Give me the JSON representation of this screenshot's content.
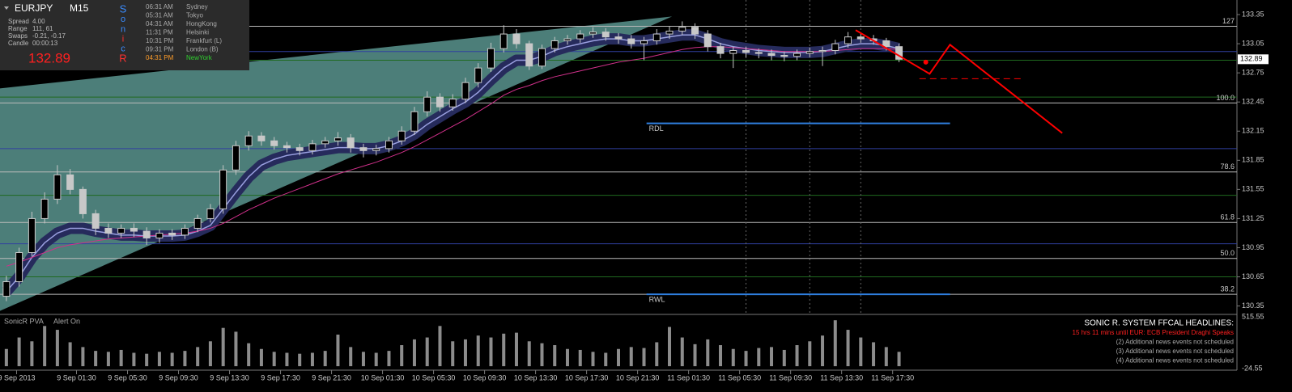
{
  "chart_data": {
    "type": "candlestick",
    "symbol": "EURJPY",
    "timeframe": "M15",
    "xlim": [
      -4.5,
      92.5
    ],
    "xticks": [
      {
        "value": -3.2,
        "label": "9 Sep 2013"
      },
      {
        "value": 1.5,
        "label": "9 Sep 01:30"
      },
      {
        "value": 5.5,
        "label": "9 Sep 05:30"
      },
      {
        "value": 9.5,
        "label": "9 Sep 09:30"
      },
      {
        "value": 13.5,
        "label": "9 Sep 13:30"
      },
      {
        "value": 17.5,
        "label": "9 Sep 17:30"
      },
      {
        "value": 21.5,
        "label": "9 Sep 21:30"
      },
      {
        "value": 25.5,
        "label": "10 Sep 01:30"
      },
      {
        "value": 29.5,
        "label": "10 Sep 05:30"
      },
      {
        "value": 33.5,
        "label": "10 Sep 09:30"
      },
      {
        "value": 37.5,
        "label": "10 Sep 13:30"
      },
      {
        "value": 41.5,
        "label": "10 Sep 17:30"
      },
      {
        "value": 45.5,
        "label": "10 Sep 21:30"
      },
      {
        "value": 49.5,
        "label": "11 Sep 01:30"
      },
      {
        "value": 53.5,
        "label": "11 Sep 05:30"
      },
      {
        "value": 57.5,
        "label": "11 Sep 09:30"
      },
      {
        "value": 61.5,
        "label": "11 Sep 13:30"
      },
      {
        "value": 65.5,
        "label": "11 Sep 17:30"
      }
    ],
    "ylim": [
      130.28,
      133.5
    ],
    "yticks": [
      133.35,
      133.05,
      132.75,
      132.45,
      132.15,
      131.85,
      131.55,
      131.25,
      130.95,
      130.65,
      130.35
    ],
    "last_price": 132.89,
    "candle_color": "#c8c8c8",
    "x": [
      -4,
      -3,
      -2,
      -1,
      0,
      1,
      2,
      3,
      4,
      5,
      6,
      7,
      8,
      9,
      10,
      11,
      12,
      13,
      14,
      15,
      16,
      17,
      18,
      19,
      20,
      21,
      22,
      23,
      24,
      25,
      26,
      27,
      28,
      29,
      30,
      31,
      32,
      33,
      34,
      35,
      36,
      37,
      38,
      39,
      40,
      41,
      42,
      43,
      44,
      45,
      46,
      47,
      48,
      49,
      50,
      51,
      52,
      53,
      54,
      55,
      56,
      57,
      58,
      59,
      60,
      61,
      62,
      63,
      64,
      65,
      66
    ],
    "open": [
      130.45,
      130.6,
      130.9,
      131.25,
      131.45,
      131.7,
      131.55,
      131.3,
      131.15,
      131.1,
      131.15,
      131.12,
      131.05,
      131.1,
      131.08,
      131.15,
      131.25,
      131.35,
      131.75,
      132,
      132.1,
      132.05,
      132,
      131.98,
      131.95,
      132.02,
      132.05,
      132.08,
      131.98,
      131.95,
      131.97,
      132.05,
      132.15,
      132.35,
      132.5,
      132.4,
      132.48,
      132.65,
      132.8,
      133,
      133.15,
      133.05,
      132.82,
      133,
      133.08,
      133.1,
      133.15,
      133.17,
      133.12,
      133.1,
      133.05,
      133.08,
      133.15,
      133.18,
      133.22,
      133.15,
      133.02,
      132.95,
      132.98,
      132.96,
      132.95,
      132.93,
      132.92,
      132.95,
      132.97,
      132.98,
      133.05,
      133.12,
      133.1,
      133.08,
      133.02
    ],
    "high": [
      130.66,
      130.95,
      131.32,
      131.52,
      131.8,
      131.76,
      131.58,
      131.34,
      131.2,
      131.19,
      131.2,
      131.16,
      131.14,
      131.14,
      131.19,
      131.29,
      131.4,
      131.8,
      132.05,
      132.15,
      132.14,
      132.09,
      132.04,
      132.02,
      132.06,
      132.09,
      132.14,
      132.12,
      132.02,
      132.01,
      132.09,
      132.2,
      132.4,
      132.56,
      132.54,
      132.53,
      132.7,
      132.85,
      133.06,
      133.24,
      133.2,
      133.08,
      133.04,
      133.12,
      133.14,
      133.19,
      133.22,
      133.21,
      133.16,
      133.14,
      133.12,
      133.2,
      133.23,
      133.28,
      133.26,
      133.19,
      133.06,
      133.02,
      133.02,
      133,
      132.99,
      132.97,
      132.99,
      133.01,
      133.02,
      133.09,
      133.17,
      133.16,
      133.14,
      133.11,
      133.05
    ],
    "low": [
      130.4,
      130.55,
      130.86,
      131.2,
      131.4,
      131.5,
      131.25,
      131.08,
      131.05,
      131.05,
      131.06,
      130.98,
      131,
      131.03,
      131.04,
      131.11,
      131.21,
      131.3,
      131.7,
      131.95,
      132,
      131.96,
      131.93,
      131.9,
      131.91,
      131.98,
      132,
      131.93,
      131.88,
      131.9,
      131.93,
      132.01,
      132.11,
      132.3,
      132.35,
      132.36,
      132.44,
      132.6,
      132.76,
      132.96,
      133,
      132.78,
      132.79,
      132.96,
      133.04,
      133.06,
      133.11,
      133.08,
      133.05,
      133,
      132.88,
      133.04,
      133.1,
      133.14,
      133.1,
      132.97,
      132.9,
      132.8,
      132.91,
      132.9,
      132.88,
      132.87,
      132.88,
      132.91,
      132.82,
      132.94,
      133.01,
      133.06,
      133.04,
      132.98,
      132.86
    ],
    "close": [
      130.6,
      130.9,
      131.25,
      131.45,
      131.7,
      131.55,
      131.3,
      131.15,
      131.1,
      131.15,
      131.12,
      131.05,
      131.1,
      131.08,
      131.15,
      131.25,
      131.35,
      131.75,
      132,
      132.1,
      132.05,
      132,
      131.98,
      131.95,
      132.02,
      132.05,
      132.08,
      131.98,
      131.95,
      131.97,
      132.05,
      132.15,
      132.35,
      132.5,
      132.4,
      132.48,
      132.65,
      132.8,
      133,
      133.15,
      133.05,
      132.82,
      133,
      133.08,
      133.1,
      133.15,
      133.17,
      133.12,
      133.1,
      133.05,
      133.08,
      133.15,
      133.18,
      133.22,
      133.15,
      133.02,
      132.95,
      132.98,
      132.96,
      132.95,
      132.93,
      132.92,
      132.95,
      132.97,
      132.98,
      133.05,
      133.12,
      133.1,
      133.08,
      133.02,
      132.89
    ],
    "dragon": {
      "color": "#262b5c",
      "line_color": "#9aa0e0",
      "values": [
        130.5,
        130.65,
        130.85,
        131,
        131.1,
        131.15,
        131.15,
        131.12,
        131.1,
        131.08,
        131.08,
        131.07,
        131.07,
        131.07,
        131.08,
        131.12,
        131.18,
        131.35,
        131.52,
        131.68,
        131.8,
        131.86,
        131.9,
        131.92,
        131.94,
        131.96,
        131.98,
        131.98,
        131.97,
        131.97,
        132,
        132.05,
        132.12,
        132.22,
        132.3,
        132.38,
        132.45,
        132.55,
        132.68,
        132.8,
        132.88,
        132.88,
        132.92,
        132.98,
        133.02,
        133.05,
        133.08,
        133.1,
        133.1,
        133.08,
        133.08,
        133.1,
        133.12,
        133.14,
        133.14,
        133.1,
        133.05,
        133.02,
        133,
        132.98,
        132.97,
        132.96,
        132.96,
        132.96,
        132.97,
        133,
        133.03,
        133.05,
        133.05,
        133.03,
        133
      ]
    },
    "ema": {
      "color": "#d0308a",
      "values": [
        130.76,
        130.8,
        130.85,
        130.9,
        130.95,
        130.98,
        131,
        131.02,
        131.04,
        131.05,
        131.06,
        131.07,
        131.08,
        131.09,
        131.1,
        131.12,
        131.15,
        131.2,
        131.27,
        131.34,
        131.4,
        131.46,
        131.51,
        131.56,
        131.61,
        131.66,
        131.71,
        131.75,
        131.79,
        131.83,
        131.88,
        131.93,
        131.99,
        132.06,
        132.13,
        132.2,
        132.27,
        132.35,
        132.43,
        132.52,
        132.58,
        132.62,
        132.67,
        132.71,
        132.74,
        132.77,
        132.8,
        132.83,
        132.86,
        132.88,
        132.9,
        132.93,
        132.96,
        132.99,
        133.01,
        133.02,
        133.02,
        133.01,
        133,
        132.99,
        132.98,
        132.97,
        132.97,
        132.97,
        132.97,
        132.98,
        132.99,
        133,
        133,
        133,
        132.99
      ]
    },
    "wedge": {
      "color": "#5f9e97",
      "x": [
        -4.5,
        48.2,
        -4.5
      ],
      "y": [
        132.59,
        133.33,
        130.3
      ]
    },
    "levels": [
      {
        "price": 132.97,
        "color": "#3040a0"
      },
      {
        "price": 132.88,
        "color": "#1f6a1f"
      },
      {
        "price": 132.5,
        "color": "#1f6a1f"
      },
      {
        "price": 131.97,
        "color": "#3040a0"
      },
      {
        "price": 131.49,
        "color": "#1f6a1f"
      },
      {
        "price": 130.99,
        "color": "#3040a0"
      },
      {
        "price": 130.65,
        "color": "#1f6a1f"
      }
    ],
    "fib_levels": [
      {
        "price": 133.23,
        "label": "127"
      },
      {
        "price": 132.44,
        "label": "100.0"
      },
      {
        "price": 131.73,
        "label": "78.6"
      },
      {
        "price": 131.21,
        "label": "61.8"
      },
      {
        "price": 130.84,
        "label": "50.0"
      },
      {
        "price": 130.47,
        "label": "38.2"
      }
    ],
    "zones": [
      {
        "label": "RDL",
        "price": 132.23,
        "x": [
          46.2,
          70.0
        ],
        "color": "#2f7fe0"
      },
      {
        "label": "RWL",
        "price": 130.47,
        "x": [
          46.2,
          70.0
        ],
        "color": "#2f7fe0"
      }
    ],
    "vlines": [
      54.0,
      59.0,
      63.0
    ],
    "projection": {
      "color": "#ff0000",
      "x": [
        62.6,
        68.4,
        70.0,
        78.8
      ],
      "y": [
        133.19,
        132.74,
        133.04,
        132.13
      ],
      "dash_x": [
        67.6,
        75.8
      ],
      "dash_y": 132.69,
      "dot_x": 68.1,
      "dot_y": 132.86
    },
    "volume": {
      "title": "SonicR PVA",
      "status": "Alert On",
      "color": "#8c8c8c",
      "ylim": [
        -24.55,
        515.55
      ],
      "yticks": [
        515.55,
        -24.55
      ],
      "values": [
        180,
        300,
        260,
        420,
        380,
        250,
        200,
        160,
        150,
        170,
        140,
        130,
        150,
        140,
        160,
        200,
        260,
        400,
        360,
        240,
        180,
        150,
        140,
        130,
        140,
        160,
        330,
        200,
        150,
        140,
        160,
        220,
        280,
        300,
        420,
        260,
        280,
        320,
        300,
        340,
        350,
        260,
        240,
        220,
        180,
        170,
        150,
        140,
        180,
        200,
        190,
        250,
        410,
        300,
        230,
        280,
        220,
        180,
        160,
        190,
        200,
        170,
        220,
        260,
        320,
        480,
        380,
        300,
        250,
        200,
        150
      ]
    }
  },
  "panel": {
    "rows": [
      {
        "label": "Spread",
        "value": "4.00"
      },
      {
        "label": "Range",
        "value": "111, 61"
      },
      {
        "label": "Swaps",
        "value": "-0.21, -0.17"
      },
      {
        "label": "Candle",
        "value": "00:00:13"
      }
    ],
    "price": "132.89",
    "letters": [
      "S",
      "o",
      "n",
      "i",
      "c",
      "R"
    ],
    "sessions": [
      {
        "time": "06:31 AM",
        "city": "Sydney"
      },
      {
        "time": "05:31 AM",
        "city": "Tokyo"
      },
      {
        "time": "04:31 AM",
        "city": "HongKong"
      },
      {
        "time": "11:31 PM",
        "city": "Helsinki"
      },
      {
        "time": "10:31 PM",
        "city": "Frankfurt  (L)"
      },
      {
        "time": "09:31 PM",
        "city": "London  (B)"
      },
      {
        "time": "04:31 PM",
        "city": "NewYork"
      }
    ]
  },
  "headlines": {
    "title": "SONIC R. SYSTEM  FFCAL HEADLINES:",
    "items": [
      "15 hrs 11 mins until EUR: ECB President Draghi Speaks",
      "(2)  Additional news events not scheduled",
      "(3)  Additional news events not scheduled",
      "(4)  Additional news events not scheduled"
    ]
  }
}
